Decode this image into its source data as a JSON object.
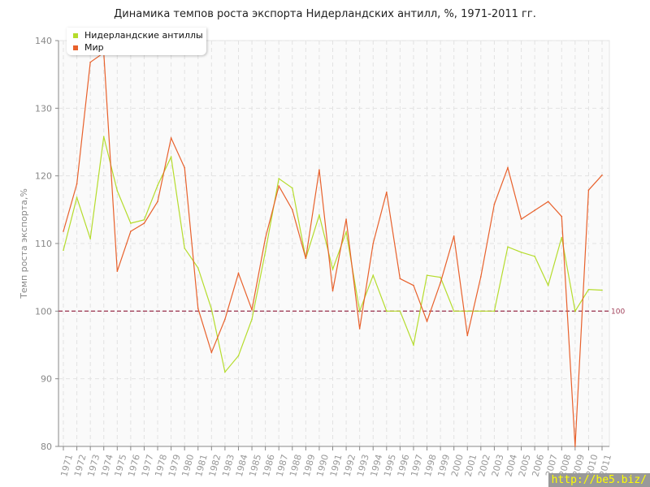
{
  "chart_data": {
    "type": "line",
    "title": "Динамика темпов роста экспорта Нидерландских антилл, %, 1971-2011 гг.",
    "xlabel": "",
    "ylabel": "Темп роста экспорта,%",
    "ylim": [
      80,
      140
    ],
    "yticks": [
      80,
      90,
      100,
      110,
      120,
      130,
      140
    ],
    "grid": true,
    "legend_position": "top-left",
    "reference_line": {
      "value": 100,
      "label": "100",
      "color": "#a0405a"
    },
    "x": [
      1971,
      1972,
      1973,
      1974,
      1975,
      1976,
      1977,
      1978,
      1979,
      1980,
      1981,
      1982,
      1983,
      1984,
      1985,
      1986,
      1987,
      1988,
      1989,
      1990,
      1991,
      1992,
      1993,
      1994,
      1995,
      1996,
      1997,
      1998,
      1999,
      2000,
      2001,
      2002,
      2003,
      2004,
      2005,
      2006,
      2007,
      2008,
      2009,
      2010,
      2011
    ],
    "series": [
      {
        "name": "Нидерландские антиллы",
        "color": "#b5dc2c",
        "values": [
          109.0,
          116.8,
          110.7,
          125.8,
          117.8,
          113.0,
          113.5,
          118.6,
          122.8,
          109.3,
          106.4,
          100.3,
          91.0,
          93.4,
          98.8,
          108.8,
          119.6,
          118.2,
          107.8,
          114.2,
          106.2,
          111.7,
          100.0,
          105.3,
          100.0,
          100.0,
          95.0,
          105.3,
          105.0,
          100.0,
          100.0,
          100.0,
          100.0,
          109.5,
          108.7,
          108.1,
          103.8,
          110.9,
          100.0,
          103.2,
          103.1
        ]
      },
      {
        "name": "Мир",
        "color": "#e8612c",
        "values": [
          111.8,
          118.8,
          136.8,
          138.2,
          105.9,
          111.8,
          113.0,
          116.2,
          125.6,
          121.2,
          100.4,
          93.9,
          98.8,
          105.6,
          100.2,
          110.8,
          118.5,
          115.0,
          107.8,
          120.9,
          103.0,
          113.6,
          97.4,
          110.0,
          117.6,
          104.8,
          103.8,
          98.5,
          104.2,
          111.1,
          96.4,
          105.1,
          115.8,
          121.2,
          113.6,
          114.9,
          116.2,
          114.0,
          80.0,
          117.9,
          120.1
        ]
      }
    ]
  },
  "watermark": "http://be5.biz/"
}
